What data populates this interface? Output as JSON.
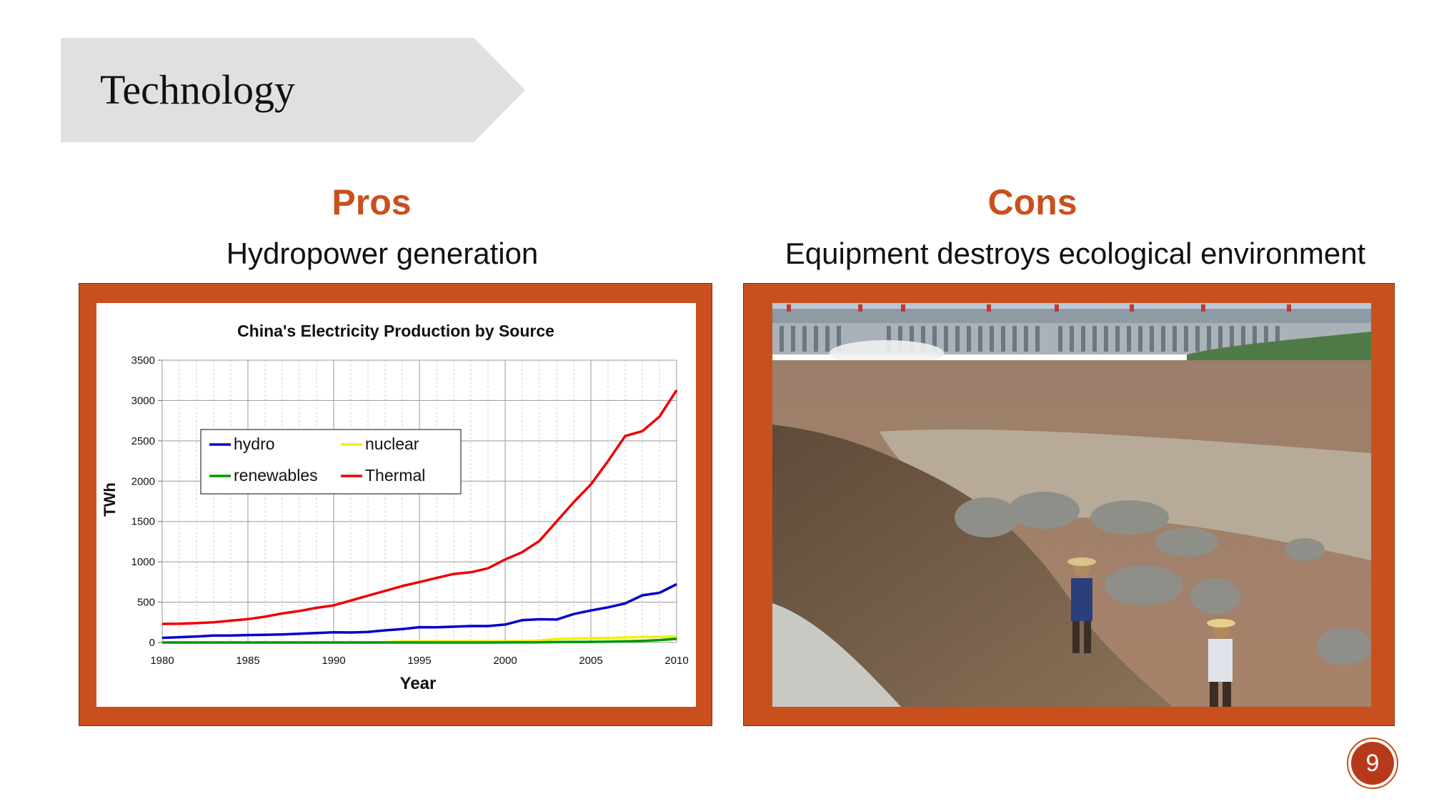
{
  "slide": {
    "title": "Technology",
    "page_number": "9",
    "accent_color": "#c9501c",
    "banner_color": "#e0e0e0"
  },
  "pros": {
    "heading": "Pros",
    "subtitle": "Hydropower generation"
  },
  "cons": {
    "heading": "Cons",
    "subtitle": "Equipment destroys ecological environment"
  },
  "chart_data": {
    "type": "line",
    "title": "China's Electricity Production by Source",
    "xlabel": "Year",
    "ylabel": "TWh",
    "xlim": [
      1980,
      2010
    ],
    "ylim": [
      0,
      3500
    ],
    "x_ticks": [
      1980,
      1985,
      1990,
      1995,
      2000,
      2005,
      2010
    ],
    "y_ticks": [
      0,
      500,
      1000,
      1500,
      2000,
      2500,
      3000,
      3500
    ],
    "grid": true,
    "legend_position": "upper-left",
    "x": [
      1980,
      1981,
      1982,
      1983,
      1984,
      1985,
      1986,
      1987,
      1988,
      1989,
      1990,
      1991,
      1992,
      1993,
      1994,
      1995,
      1996,
      1997,
      1998,
      1999,
      2000,
      2001,
      2002,
      2003,
      2004,
      2005,
      2006,
      2007,
      2008,
      2009,
      2010
    ],
    "series": [
      {
        "name": "hydro",
        "color": "#0000cc",
        "values": [
          58,
          66,
          74,
          86,
          87,
          92,
          95,
          100,
          109,
          118,
          126,
          124,
          130,
          151,
          167,
          190,
          188,
          196,
          204,
          204,
          222,
          277,
          288,
          284,
          353,
          397,
          436,
          485,
          585,
          616,
          722
        ]
      },
      {
        "name": "nuclear",
        "color": "#f2f200",
        "values": [
          0,
          0,
          0,
          0,
          0,
          0,
          0,
          0,
          0,
          0,
          0,
          0,
          0,
          2,
          13,
          13,
          14,
          14,
          14,
          15,
          17,
          17,
          25,
          43,
          50,
          53,
          55,
          62,
          68,
          70,
          74
        ]
      },
      {
        "name": "renewables",
        "color": "#009900",
        "values": [
          0,
          0,
          0,
          0,
          0,
          0,
          0,
          0,
          0,
          0,
          0,
          0,
          0,
          0,
          0,
          0,
          0,
          0,
          0,
          0,
          1,
          2,
          3,
          5,
          6,
          8,
          10,
          14,
          20,
          30,
          45
        ]
      },
      {
        "name": "Thermal",
        "color": "#ee0000",
        "values": [
          230,
          232,
          240,
          250,
          270,
          290,
          320,
          360,
          390,
          430,
          460,
          520,
          580,
          640,
          700,
          750,
          800,
          850,
          870,
          920,
          1030,
          1120,
          1260,
          1500,
          1740,
          1960,
          2250,
          2560,
          2620,
          2800,
          3130
        ]
      }
    ]
  }
}
